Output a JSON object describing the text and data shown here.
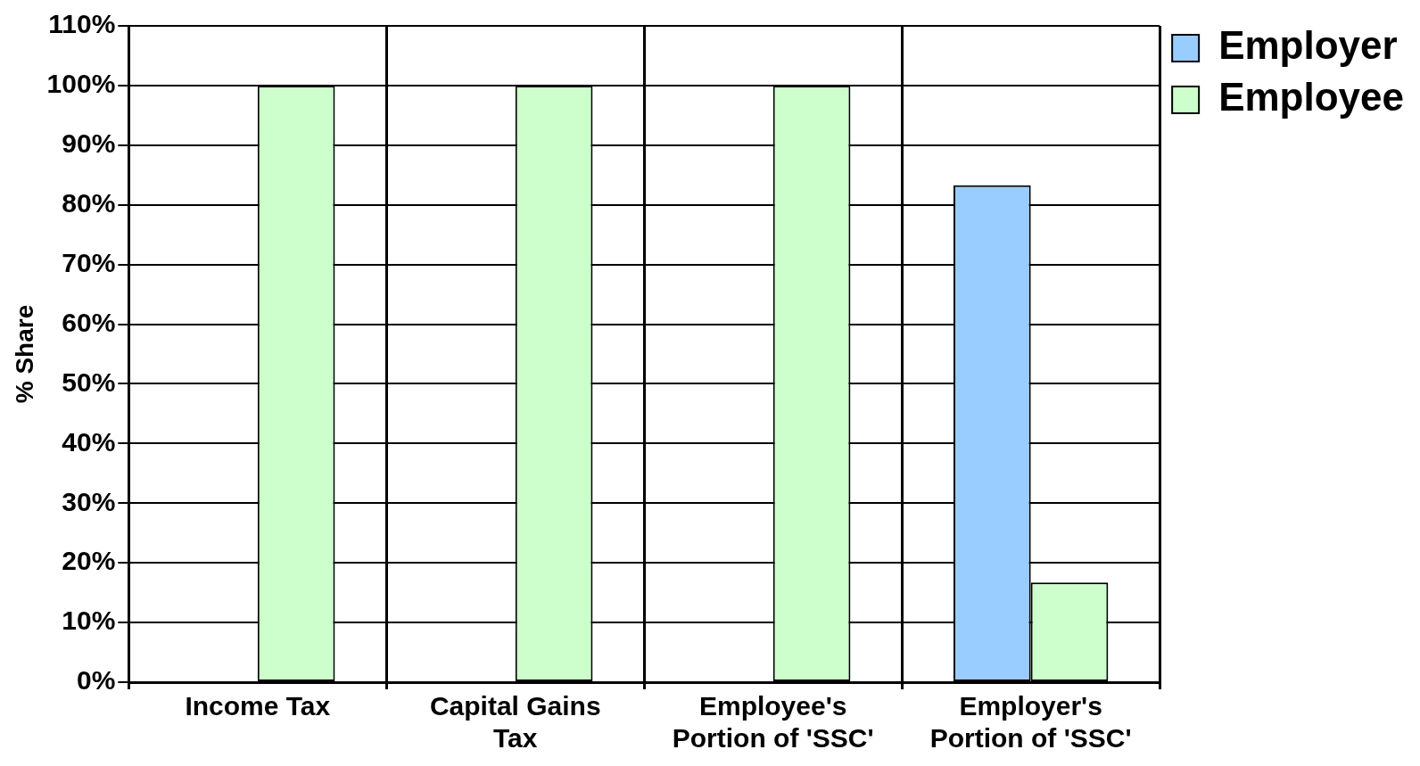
{
  "chart_data": {
    "type": "bar",
    "ylabel": "% Share",
    "categories": [
      "Income Tax",
      "Capital Gains Tax",
      "Employee's Portion of 'SSC'",
      "Employer's Portion of 'SSC'"
    ],
    "series": [
      {
        "name": "Employer",
        "color": "#99ccff",
        "values": [
          0,
          0,
          0,
          83.3
        ]
      },
      {
        "name": "Employee",
        "color": "#ccffcc",
        "values": [
          100,
          100,
          100,
          16.7
        ]
      }
    ],
    "ylim": [
      0,
      110
    ],
    "yticks": [
      {
        "value": 0,
        "label": "0%"
      },
      {
        "value": 10,
        "label": "10%"
      },
      {
        "value": 20,
        "label": "20%"
      },
      {
        "value": 30,
        "label": "30%"
      },
      {
        "value": 40,
        "label": "40%"
      },
      {
        "value": 50,
        "label": "50%"
      },
      {
        "value": 60,
        "label": "60%"
      },
      {
        "value": 70,
        "label": "70%"
      },
      {
        "value": 80,
        "label": "80%"
      },
      {
        "value": 90,
        "label": "90%"
      },
      {
        "value": 100,
        "label": "100%"
      },
      {
        "value": 110,
        "label": "110%"
      }
    ],
    "grid": true,
    "legend": "top right"
  }
}
